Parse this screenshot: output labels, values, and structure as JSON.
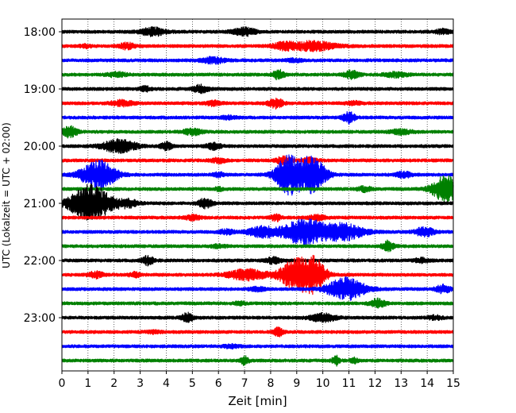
{
  "chart_data": {
    "type": "line",
    "subtype": "helicorder",
    "xlabel": "Zeit  [min]",
    "ylabel": "UTC (Lokalzeit = UTC + 02:00)",
    "xlim": [
      0,
      15
    ],
    "x_ticks": [
      "0",
      "1",
      "2",
      "3",
      "4",
      "5",
      "6",
      "7",
      "8",
      "9",
      "10",
      "11",
      "12",
      "13",
      "14",
      "15"
    ],
    "y_tick_labels": [
      "18:00",
      "19:00",
      "20:00",
      "21:00",
      "22:00",
      "23:00"
    ],
    "trace_interval_minutes": 15,
    "grid": {
      "vertical_dotted": true
    },
    "colors": [
      "#000000",
      "#ff0000",
      "#0000ff",
      "#008000"
    ],
    "traces": [
      {
        "start": "18:00",
        "color": "#000000",
        "events": [
          [
            3.5,
            0.25,
            0.35
          ],
          [
            7.0,
            0.25,
            0.3
          ],
          [
            14.6,
            0.15,
            0.2
          ]
        ]
      },
      {
        "start": "18:15",
        "color": "#ff0000",
        "events": [
          [
            2.5,
            0.2,
            0.2
          ],
          [
            9.6,
            0.3,
            0.6
          ],
          [
            8.5,
            0.2,
            0.3
          ],
          [
            0.9,
            0.1,
            0.15
          ]
        ]
      },
      {
        "start": "18:30",
        "color": "#0000ff",
        "events": [
          [
            5.8,
            0.2,
            0.3
          ],
          [
            8.9,
            0.1,
            0.2
          ]
        ]
      },
      {
        "start": "18:45",
        "color": "#008000",
        "events": [
          [
            2.1,
            0.15,
            0.25
          ],
          [
            8.3,
            0.3,
            0.15
          ],
          [
            11.1,
            0.25,
            0.2
          ],
          [
            12.8,
            0.15,
            0.3
          ]
        ]
      },
      {
        "start": "19:00",
        "color": "#000000",
        "events": [
          [
            5.3,
            0.25,
            0.2
          ],
          [
            3.2,
            0.15,
            0.15
          ]
        ]
      },
      {
        "start": "19:15",
        "color": "#ff0000",
        "events": [
          [
            2.3,
            0.18,
            0.3
          ],
          [
            8.2,
            0.3,
            0.2
          ],
          [
            5.8,
            0.15,
            0.2
          ],
          [
            11.2,
            0.1,
            0.2
          ]
        ]
      },
      {
        "start": "19:30",
        "color": "#0000ff",
        "events": [
          [
            11.0,
            0.4,
            0.15
          ],
          [
            6.4,
            0.1,
            0.2
          ]
        ]
      },
      {
        "start": "19:45",
        "color": "#008000",
        "events": [
          [
            0.3,
            0.35,
            0.2
          ],
          [
            5.0,
            0.2,
            0.25
          ],
          [
            13.0,
            0.15,
            0.3
          ]
        ]
      },
      {
        "start": "20:00",
        "color": "#000000",
        "events": [
          [
            2.2,
            0.45,
            0.45
          ],
          [
            4.0,
            0.25,
            0.15
          ],
          [
            5.8,
            0.2,
            0.2
          ]
        ]
      },
      {
        "start": "20:15",
        "color": "#ff0000",
        "events": [
          [
            6.0,
            0.15,
            0.2
          ],
          [
            8.5,
            0.25,
            0.2
          ],
          [
            9.5,
            0.15,
            0.2
          ]
        ]
      },
      {
        "start": "20:30",
        "color": "#0000ff",
        "events": [
          [
            1.4,
            1.0,
            0.45
          ],
          [
            8.7,
            1.3,
            0.35
          ],
          [
            9.6,
            1.2,
            0.35
          ],
          [
            13.1,
            0.2,
            0.2
          ],
          [
            6.0,
            0.15,
            0.15
          ]
        ]
      },
      {
        "start": "20:45",
        "color": "#008000",
        "events": [
          [
            14.7,
            0.9,
            0.35
          ],
          [
            11.6,
            0.15,
            0.2
          ],
          [
            6.0,
            0.12,
            0.1
          ]
        ]
      },
      {
        "start": "21:00",
        "color": "#000000",
        "events": [
          [
            1.1,
            1.25,
            0.55
          ],
          [
            5.5,
            0.3,
            0.2
          ],
          [
            2.5,
            0.25,
            0.3
          ]
        ]
      },
      {
        "start": "21:15",
        "color": "#ff0000",
        "events": [
          [
            5.0,
            0.15,
            0.2
          ],
          [
            8.2,
            0.2,
            0.15
          ],
          [
            9.8,
            0.15,
            0.25
          ]
        ]
      },
      {
        "start": "21:30",
        "color": "#0000ff",
        "events": [
          [
            9.3,
            0.9,
            0.55
          ],
          [
            10.8,
            0.55,
            0.55
          ],
          [
            7.7,
            0.35,
            0.4
          ],
          [
            13.9,
            0.3,
            0.25
          ],
          [
            6.3,
            0.15,
            0.2
          ]
        ]
      },
      {
        "start": "21:45",
        "color": "#008000",
        "events": [
          [
            12.5,
            0.35,
            0.15
          ],
          [
            6.0,
            0.1,
            0.2
          ]
        ]
      },
      {
        "start": "22:00",
        "color": "#000000",
        "events": [
          [
            3.3,
            0.3,
            0.15
          ],
          [
            8.1,
            0.2,
            0.2
          ],
          [
            13.8,
            0.15,
            0.2
          ]
        ]
      },
      {
        "start": "22:15",
        "color": "#ff0000",
        "events": [
          [
            9.0,
            1.05,
            0.45
          ],
          [
            9.7,
            0.9,
            0.3
          ],
          [
            7.1,
            0.35,
            0.5
          ],
          [
            1.3,
            0.2,
            0.2
          ],
          [
            2.8,
            0.15,
            0.15
          ]
        ]
      },
      {
        "start": "22:30",
        "color": "#0000ff",
        "events": [
          [
            10.9,
            0.75,
            0.5
          ],
          [
            14.6,
            0.25,
            0.2
          ],
          [
            7.5,
            0.12,
            0.2
          ]
        ]
      },
      {
        "start": "22:45",
        "color": "#008000",
        "events": [
          [
            12.1,
            0.3,
            0.2
          ],
          [
            6.8,
            0.1,
            0.15
          ]
        ]
      },
      {
        "start": "23:00",
        "color": "#000000",
        "events": [
          [
            4.8,
            0.3,
            0.15
          ],
          [
            10.0,
            0.25,
            0.35
          ],
          [
            14.3,
            0.12,
            0.2
          ]
        ]
      },
      {
        "start": "23:15",
        "color": "#ff0000",
        "events": [
          [
            8.3,
            0.3,
            0.12
          ],
          [
            3.5,
            0.08,
            0.2
          ]
        ]
      },
      {
        "start": "23:30",
        "color": "#0000ff",
        "events": [
          [
            6.5,
            0.1,
            0.2
          ]
        ]
      },
      {
        "start": "23:45",
        "color": "#008000",
        "events": [
          [
            7.0,
            0.3,
            0.1
          ],
          [
            10.5,
            0.3,
            0.1
          ],
          [
            11.2,
            0.15,
            0.1
          ]
        ]
      }
    ]
  }
}
